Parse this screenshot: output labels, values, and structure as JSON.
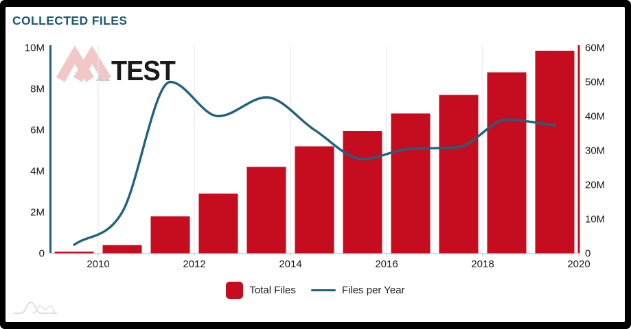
{
  "window": {
    "frame_color": "#000000",
    "card_color": "#ffffff"
  },
  "header": {
    "title": "COLLECTED FILES",
    "title_color": "#1b5a78"
  },
  "watermark": {
    "logo_name": "avtest-logo",
    "text": "TEST",
    "av_color": "#f1c7c7",
    "triangle_color": "#b9cfda",
    "test_color": "#cfdbe2"
  },
  "icons": {
    "footer_logo": "bell-curves-logo",
    "watermark_logo": "avtest-av-chevrons-logo"
  },
  "chart_data": {
    "type": "combo-bar-line",
    "unit": "millions",
    "categories": [
      "2009",
      "2010",
      "2011",
      "2012",
      "2013",
      "2014",
      "2015",
      "2016",
      "2017",
      "2018",
      "2019"
    ],
    "series": [
      {
        "name": "Total Files",
        "type": "bar",
        "axis": "left",
        "color": "#c60d1f",
        "values": [
          0.08,
          0.4,
          1.8,
          2.9,
          4.2,
          5.2,
          5.95,
          6.8,
          7.7,
          8.8,
          9.85
        ]
      },
      {
        "name": "Files per Year",
        "type": "line",
        "axis": "right",
        "color": "#20617f",
        "values": [
          2.5,
          12,
          50,
          40,
          45.5,
          36,
          27.5,
          30.5,
          31,
          39,
          37.3
        ]
      }
    ],
    "left_axis": {
      "ticks": [
        "0",
        "2M",
        "4M",
        "6M",
        "8M",
        "10M"
      ],
      "tick_values": [
        0,
        2,
        4,
        6,
        8,
        10
      ],
      "range": [
        0,
        10
      ],
      "axis_color": "#20617f"
    },
    "right_axis": {
      "ticks": [
        "0",
        "10M",
        "20M",
        "30M",
        "40M",
        "50M",
        "60M"
      ],
      "tick_values": [
        0,
        10,
        20,
        30,
        40,
        50,
        60
      ],
      "range": [
        0,
        60
      ],
      "axis_color": "#c60d1f"
    },
    "x_axis": {
      "tick_labels": [
        "2010",
        "2012",
        "2014",
        "2016",
        "2018",
        "2020"
      ],
      "tick_years": [
        2010,
        2012,
        2014,
        2016,
        2018,
        2020
      ]
    },
    "grid": "vertical-only",
    "legend_position": "bottom-center",
    "title": "COLLECTED FILES"
  },
  "legend": {
    "items": [
      {
        "label": "Total Files",
        "swatch": "square",
        "color": "#c60d1f"
      },
      {
        "label": "Files per Year",
        "swatch": "line",
        "color": "#20617f"
      }
    ]
  }
}
